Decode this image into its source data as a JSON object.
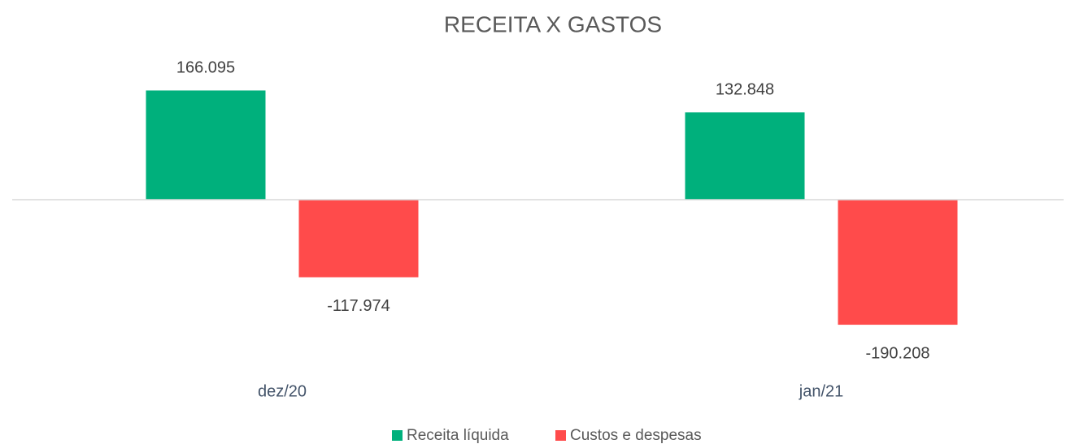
{
  "chart_data": {
    "type": "bar",
    "title": "RECEITA X GASTOS",
    "categories": [
      "dez/20",
      "jan/21"
    ],
    "series": [
      {
        "name": "Receita líquida",
        "color": "#00b07c",
        "values": [
          166095,
          132848
        ],
        "value_labels": [
          "166.095",
          "132.848"
        ]
      },
      {
        "name": "Custos e despesas",
        "color": "#ff4b4b",
        "values": [
          -117974,
          -190208
        ],
        "value_labels": [
          "-117.974",
          "-190.208"
        ]
      }
    ],
    "legend": "bottom"
  }
}
